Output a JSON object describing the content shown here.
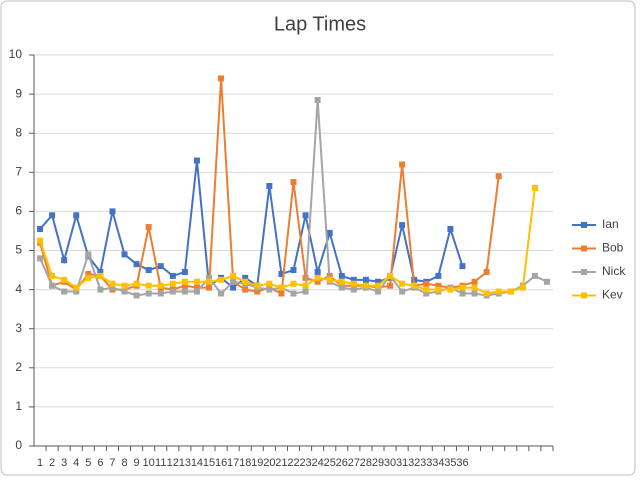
{
  "chart_data": {
    "type": "line",
    "title": "Lap Times",
    "categories": [
      1,
      2,
      3,
      4,
      5,
      6,
      7,
      8,
      9,
      10,
      11,
      12,
      13,
      14,
      15,
      16,
      17,
      18,
      19,
      20,
      21,
      22,
      23,
      24,
      25,
      26,
      27,
      28,
      29,
      30,
      31,
      32,
      33,
      34,
      35,
      36,
      null,
      null,
      null,
      null,
      null,
      null,
      null
    ],
    "series": [
      {
        "name": "Ian",
        "color": "#4472c4",
        "values": [
          5.55,
          5.9,
          4.75,
          5.9,
          4.85,
          4.45,
          6.0,
          4.9,
          4.65,
          4.5,
          4.6,
          4.35,
          4.45,
          7.3,
          4.1,
          4.3,
          4.05,
          4.3,
          4.1,
          6.65,
          4.4,
          4.5,
          5.9,
          4.45,
          5.45,
          4.35,
          4.25,
          4.25,
          4.2,
          4.3,
          5.65,
          4.25,
          4.2,
          4.35,
          5.55,
          4.6,
          null,
          null,
          null,
          null,
          null,
          null,
          null
        ]
      },
      {
        "name": "Bob",
        "color": "#ed7d31",
        "values": [
          5.2,
          4.1,
          4.2,
          4.0,
          4.4,
          4.35,
          4.0,
          4.0,
          4.1,
          5.6,
          4.05,
          4.0,
          4.1,
          4.05,
          4.05,
          9.4,
          4.2,
          4.0,
          3.95,
          4.05,
          3.9,
          6.75,
          4.3,
          4.2,
          4.35,
          4.1,
          4.1,
          4.1,
          4.05,
          4.1,
          7.2,
          4.1,
          4.15,
          4.1,
          4.05,
          4.1,
          4.2,
          4.45,
          6.9,
          null,
          null,
          null,
          null
        ]
      },
      {
        "name": "Nick",
        "color": "#a5a5a5",
        "values": [
          4.8,
          4.1,
          3.95,
          3.95,
          4.9,
          4.0,
          4.05,
          3.95,
          3.85,
          3.9,
          3.9,
          3.95,
          3.95,
          3.95,
          4.3,
          3.9,
          4.2,
          4.15,
          4.05,
          4.0,
          4.05,
          3.9,
          3.95,
          8.85,
          4.2,
          4.05,
          4.0,
          4.05,
          3.95,
          4.35,
          3.95,
          4.05,
          3.9,
          3.95,
          4.05,
          3.9,
          3.9,
          3.85,
          3.9,
          3.95,
          4.1,
          4.35,
          4.2
        ]
      },
      {
        "name": "Kev",
        "color": "#ffc000",
        "values": [
          5.25,
          4.35,
          4.25,
          4.05,
          4.3,
          4.35,
          4.15,
          4.1,
          4.15,
          4.1,
          4.1,
          4.15,
          4.2,
          4.2,
          4.2,
          4.25,
          4.35,
          4.2,
          4.1,
          4.15,
          4.05,
          4.15,
          4.1,
          4.3,
          4.25,
          4.2,
          4.15,
          4.1,
          4.1,
          4.35,
          4.15,
          4.1,
          4.0,
          4.0,
          4.0,
          4.05,
          4.05,
          3.9,
          3.95,
          3.95,
          4.05,
          6.6,
          null
        ]
      }
    ],
    "ylim": [
      0,
      10
    ],
    "yticks": [
      0,
      1,
      2,
      3,
      4,
      5,
      6,
      7,
      8,
      9,
      10
    ],
    "grid": true,
    "legend": "right"
  }
}
